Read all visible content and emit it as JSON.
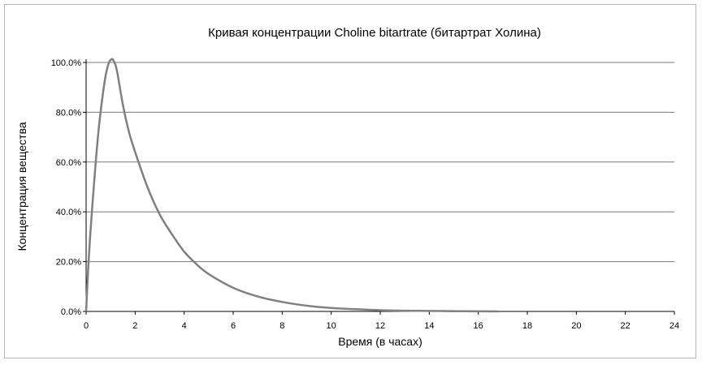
{
  "chart_data": {
    "type": "line",
    "title": "Кривая концентрации Choline bitartrate (битартрат Холина)",
    "xlabel": "Время (в часах)",
    "ylabel": "Концентрация вещества",
    "xlim": [
      0,
      24
    ],
    "ylim": [
      0,
      100
    ],
    "x_ticks": [
      "0",
      "2",
      "4",
      "6",
      "8",
      "10",
      "12",
      "14",
      "16",
      "18",
      "20",
      "22",
      "24"
    ],
    "y_ticks": [
      "0.0%",
      "20.0%",
      "40.0%",
      "60.0%",
      "80.0%",
      "100.0%"
    ],
    "grid": "horizontal",
    "legend": "none",
    "colors": {
      "line": "#808080",
      "grid": "#7a7a7a",
      "axis": "#000000"
    },
    "series": [
      {
        "x": [
          0,
          0.1,
          0.25,
          0.5,
          0.75,
          0.9,
          1.0,
          1.1,
          1.25,
          1.5,
          1.75,
          2.0,
          2.5,
          3.0,
          3.5,
          4.0,
          4.5,
          5.0,
          6.0,
          7.0,
          8.0,
          9.0,
          10.0,
          11.0,
          12.0,
          13.0,
          14.0,
          15.0,
          16.0,
          16.8
        ],
        "y": [
          0,
          20,
          42,
          72,
          92,
          99,
          101,
          101,
          97,
          83,
          72,
          64,
          50,
          39,
          31,
          24,
          19,
          15,
          9.5,
          6,
          3.8,
          2.3,
          1.4,
          0.9,
          0.5,
          0.3,
          0.2,
          0.1,
          0.05,
          0
        ]
      }
    ]
  }
}
